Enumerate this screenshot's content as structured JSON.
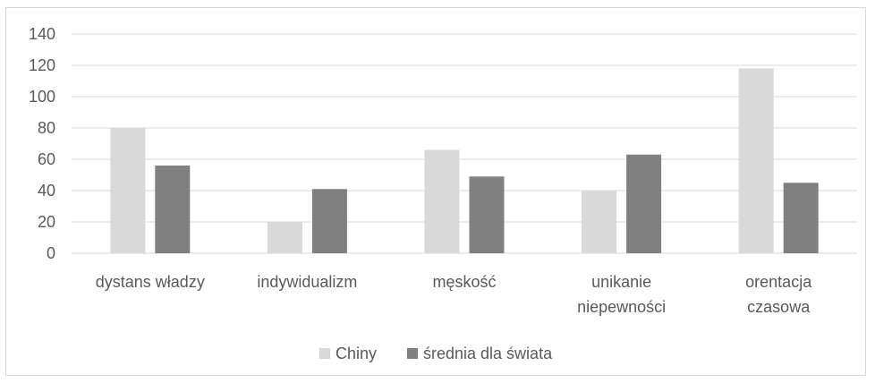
{
  "chart_data": {
    "type": "bar",
    "title": "",
    "xlabel": "",
    "ylabel": "",
    "categories": [
      [
        "dystans władzy"
      ],
      [
        "indywidualizm"
      ],
      [
        "męskość"
      ],
      [
        "unikanie",
        "niepewności"
      ],
      [
        "orentacja",
        "czasowa"
      ]
    ],
    "series": [
      {
        "name": "Chiny",
        "color": "#d9d9d9",
        "values": [
          80,
          20,
          66,
          40,
          118
        ]
      },
      {
        "name": "średnia dla świata",
        "color": "#808080",
        "values": [
          56,
          41,
          49,
          63,
          45
        ]
      }
    ],
    "ylim": [
      0,
      140
    ],
    "yticks": [
      0,
      20,
      40,
      60,
      80,
      100,
      120,
      140
    ],
    "grid": true,
    "legend_position": "bottom"
  }
}
